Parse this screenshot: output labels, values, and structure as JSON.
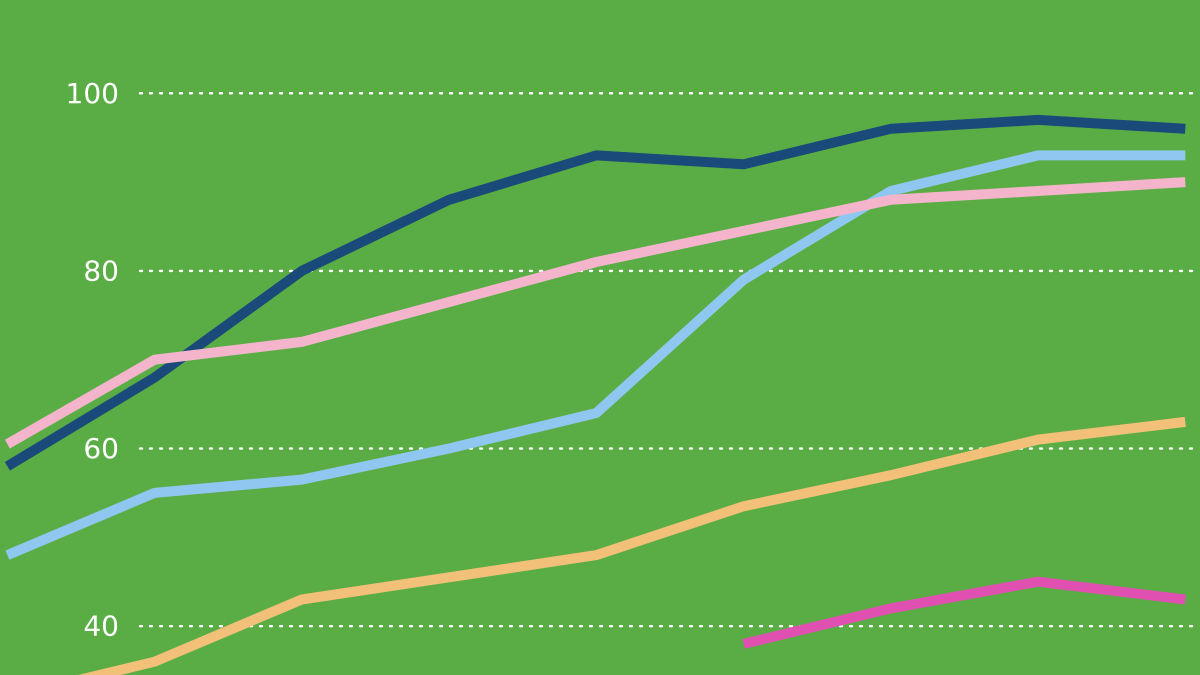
{
  "chart_data": {
    "type": "line",
    "title": "",
    "xlabel": "",
    "ylabel": "",
    "ylim": [
      34.5,
      110.5
    ],
    "grid": true,
    "y_ticks": [
      {
        "value": 40,
        "label": "40"
      },
      {
        "value": 60,
        "label": "60"
      },
      {
        "value": 80,
        "label": "80"
      },
      {
        "value": 100,
        "label": "100"
      }
    ],
    "x": [
      0,
      1,
      2,
      3,
      4,
      5,
      6,
      7,
      8,
      9
    ],
    "xlim": [
      0.95,
      9.1
    ],
    "series": [
      {
        "color": "#1a4a7a",
        "values": [
          null,
          58,
          68,
          80,
          88,
          93,
          92,
          96,
          97,
          96
        ]
      },
      {
        "color": "#8ec8f0",
        "values": [
          null,
          48,
          55,
          56.5,
          60,
          64,
          79,
          89,
          93,
          93
        ]
      },
      {
        "color": "#f4b5cc",
        "values": [
          null,
          60.5,
          70,
          72,
          76.5,
          81,
          84.5,
          88,
          89,
          90
        ]
      },
      {
        "color": "#f2c078",
        "values": [
          null,
          32,
          36,
          43,
          45.5,
          48,
          53.5,
          57,
          61,
          63
        ]
      },
      {
        "color": "#e050b0",
        "values": [
          null,
          null,
          null,
          null,
          null,
          null,
          38,
          42,
          45,
          43
        ]
      }
    ]
  }
}
